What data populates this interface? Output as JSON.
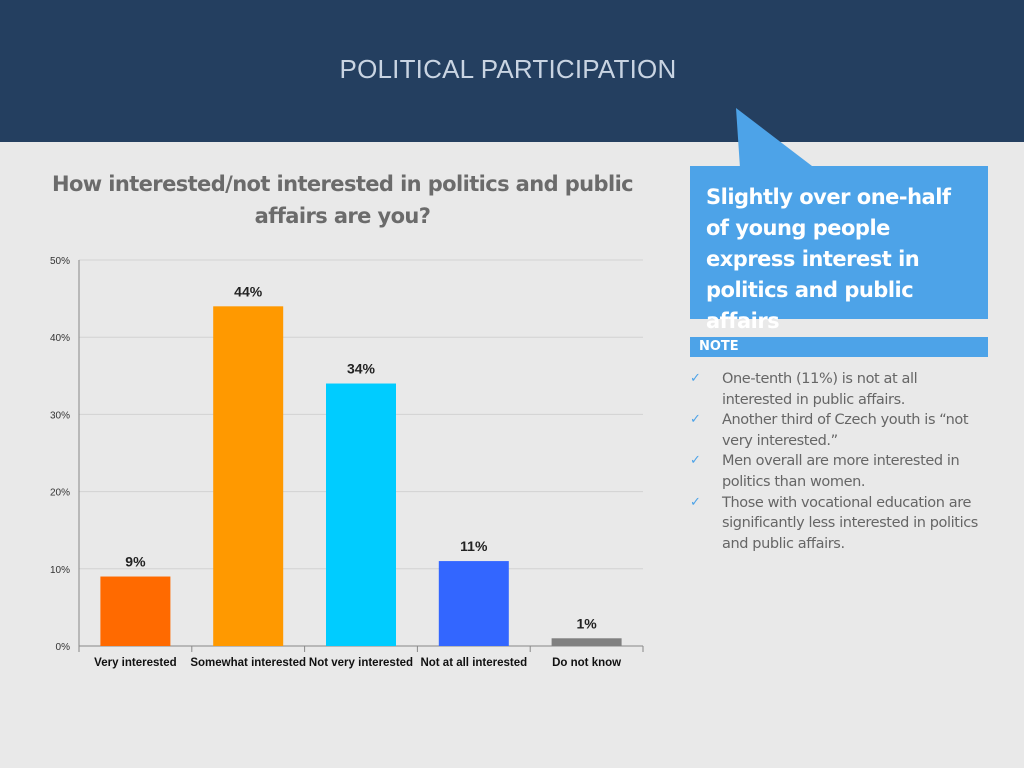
{
  "header": {
    "title": "POLITICAL PARTICIPATION"
  },
  "chart_data": {
    "type": "bar",
    "title": "How interested/not interested in politics and public affairs are you?",
    "categories": [
      "Very interested",
      "Somewhat interested",
      "Not very interested",
      "Not at all interested",
      "Do not know"
    ],
    "values": [
      9,
      44,
      34,
      11,
      1
    ],
    "data_labels": [
      "9%",
      "44%",
      "34%",
      "11%",
      "1%"
    ],
    "bar_colors": [
      "#ff6a00",
      "#ff9900",
      "#00ccff",
      "#3366ff",
      "#808080"
    ],
    "y_ticks": [
      0,
      10,
      20,
      30,
      40,
      50
    ],
    "y_tick_labels": [
      "0%",
      "10%",
      "20%",
      "30%",
      "40%",
      "50%"
    ],
    "ylim": [
      0,
      50
    ],
    "grid": true,
    "xlabel": "",
    "ylabel": ""
  },
  "callout": {
    "text": "Slightly over one-half of young people express interest in politics and public affairs",
    "color": "#4da3e8"
  },
  "note": {
    "label": "NOTE",
    "items": [
      "One-tenth (11%)  is not at all interested in public affairs.",
      "Another third of Czech youth is “not very interested.”",
      "Men overall are more interested in politics than women.",
      "Those with vocational education are significantly less interested in politics and public affairs."
    ],
    "check_icon": "✓"
  },
  "colors": {
    "header_bg": "#243f60",
    "page_bg": "#e9e9e9"
  }
}
